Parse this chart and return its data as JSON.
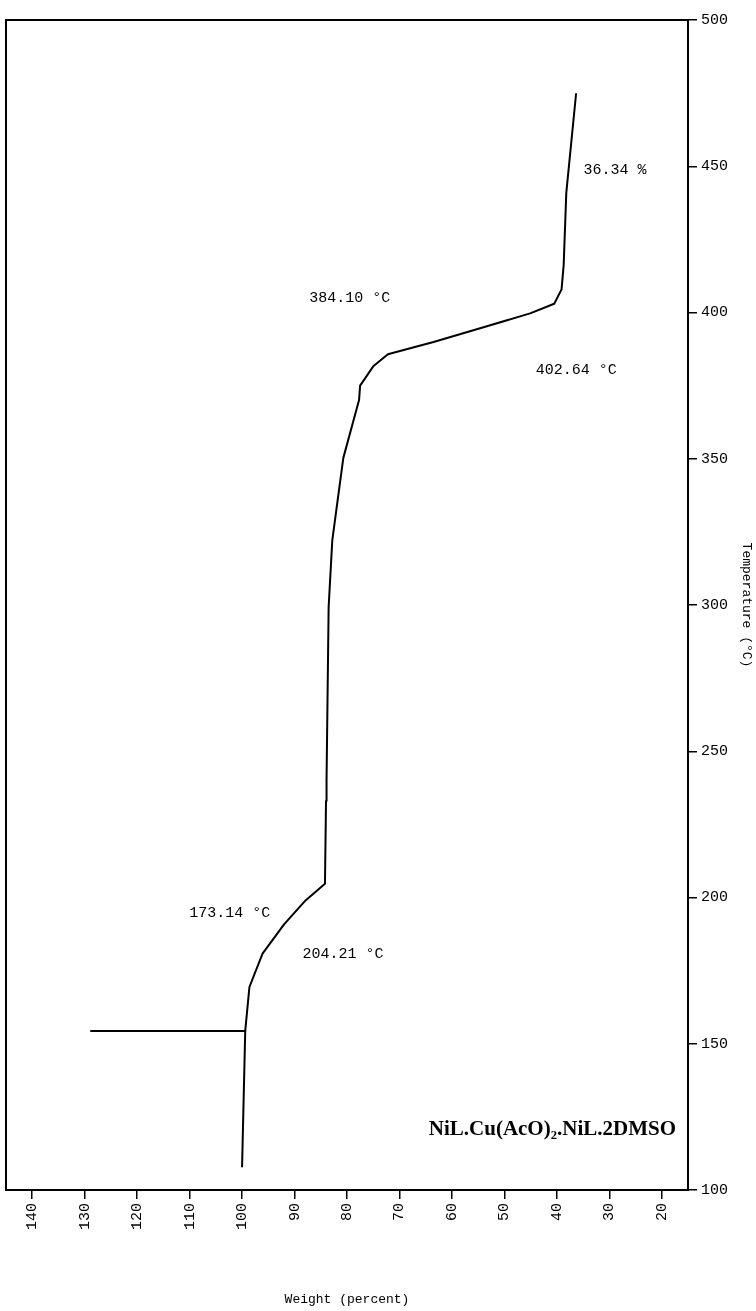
{
  "chart_data": {
    "type": "line",
    "title": "NiL.Cu(AcO)₂.NiL.2DMSO",
    "xlabel": "Weight (percent)",
    "ylabel": "Temperature (°C)",
    "xlim": [
      145,
      15
    ],
    "xticks": [
      140,
      130,
      120,
      110,
      100,
      90,
      80,
      70,
      60,
      50,
      40,
      30,
      20
    ],
    "ylim": [
      100,
      500
    ],
    "yticks": [
      100,
      150,
      200,
      250,
      300,
      350,
      400,
      450,
      500
    ],
    "grid": false,
    "legend": false,
    "marker": "none",
    "line_style": "solid",
    "series": [
      {
        "color": "#000000",
        "x": [
          100,
          99.4,
          98.6,
          96.1,
          92,
          87.9,
          84.2,
          84,
          83.9,
          83.5,
          82.8,
          80.7,
          77.7,
          77.5,
          75,
          72.2,
          63.5,
          54.3,
          45.1,
          40.5,
          39.1,
          38.7,
          38.2,
          36.34
        ],
        "values": [
          108,
          154.4,
          169.4,
          180.8,
          190.8,
          199,
          204.7,
          233,
          240,
          299.3,
          322.2,
          350.3,
          370.1,
          375,
          381.6,
          385.7,
          389.9,
          394.8,
          399.7,
          403,
          407.9,
          416.2,
          440.9,
          474.7
        ]
      },
      {
        "color": "#000000",
        "x": [
          99.4,
          128.8
        ],
        "values": [
          154.4,
          154.4
        ]
      }
    ],
    "annotations": [
      "173.14 °C",
      "204.21 °C",
      "384.10 °C",
      "402.64 °C",
      "36.34 %"
    ]
  }
}
